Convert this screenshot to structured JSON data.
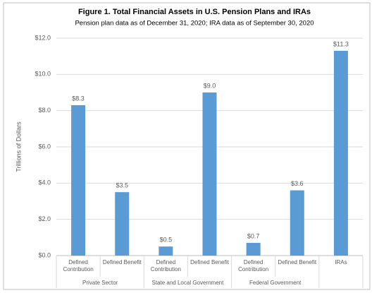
{
  "chart_data": {
    "type": "bar",
    "title": "Figure 1. Total Financial Assets in U.S. Pension Plans and IRAs",
    "subtitle": "Pension plan data as of December 31, 2020; IRA data as of September 30, 2020",
    "y_label": "Trillions of Dollars",
    "categories": [
      "Defined Contribution",
      "Defined Benefit",
      "Defined Contribution",
      "Defined Benefit",
      "Defined Contribution",
      "Defined Benefit",
      "IRAs"
    ],
    "category_groups": [
      "Private Sector",
      "Private Sector",
      "State and Local Government",
      "State and Local Government",
      "Federal Government",
      "Federal Government",
      null
    ],
    "values": [
      8.3,
      3.5,
      0.5,
      9.0,
      0.7,
      3.6,
      11.3
    ],
    "value_labels": [
      "$8.3",
      "$3.5",
      "$0.5",
      "$9.0",
      "$0.7",
      "$3.6",
      "$11.3"
    ],
    "color": "#5b9bd5",
    "ylim": [
      0,
      12
    ],
    "yticks": [
      {
        "value": 0,
        "label": "$0.0"
      },
      {
        "value": 2,
        "label": "$2.0"
      },
      {
        "value": 4,
        "label": "$4.0"
      },
      {
        "value": 6,
        "label": "$6.0"
      },
      {
        "value": 8,
        "label": "$8.0"
      },
      {
        "value": 10,
        "label": "$10.0"
      },
      {
        "value": 12,
        "label": "$12.0"
      }
    ],
    "grid": true
  }
}
